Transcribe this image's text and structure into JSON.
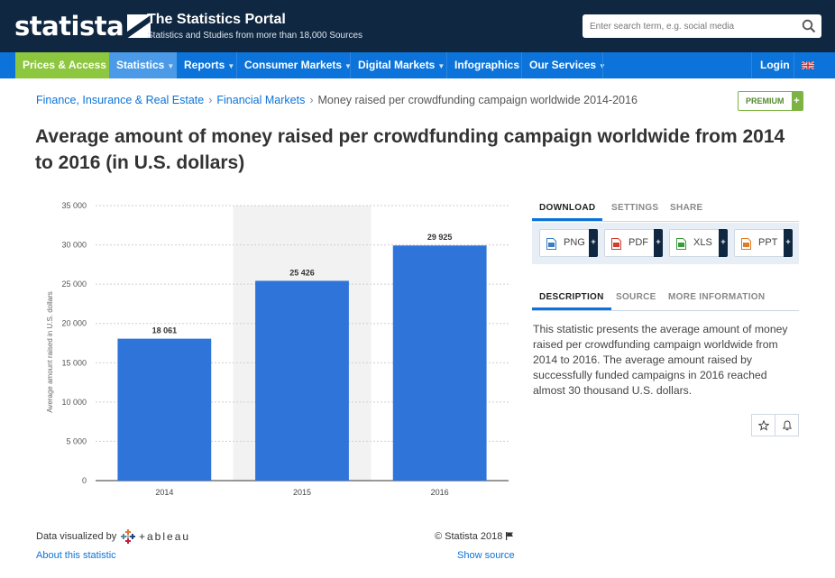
{
  "header": {
    "logo_text": "statista",
    "portal_title": "The Statistics Portal",
    "portal_subtitle": "Statistics and Studies from more than 18,000 Sources",
    "search_placeholder": "Enter search term, e.g. social media",
    "search_icon": "search-icon"
  },
  "nav": {
    "items": [
      {
        "label": "Prices & Access",
        "dropdown": true
      },
      {
        "label": "Statistics",
        "dropdown": true
      },
      {
        "label": "Reports",
        "dropdown": true
      },
      {
        "label": "Consumer Markets",
        "dropdown": true
      },
      {
        "label": "Digital Markets",
        "dropdown": true
      },
      {
        "label": "Infographics",
        "dropdown": false
      },
      {
        "label": "Our Services",
        "dropdown": true
      }
    ],
    "login": "Login",
    "flag_icon": "uk-flag-icon",
    "colors": {
      "bar": "#0b73d9",
      "prices_access": "#8dc63f",
      "statistics_active": "#4a9ae8"
    }
  },
  "breadcrumb": {
    "items": [
      "Finance, Insurance & Real Estate",
      "Financial Markets"
    ],
    "current": "Money raised per crowdfunding campaign worldwide 2014-2016",
    "separator": "›"
  },
  "premium": {
    "label": "PREMIUM",
    "plus": "+"
  },
  "page_title": "Average amount of money raised per crowdfunding campaign worldwide from 2014 to 2016 (in U.S. dollars)",
  "chart_data": {
    "type": "bar",
    "categories": [
      "2014",
      "2015",
      "2016"
    ],
    "values": [
      18061,
      25426,
      29925
    ],
    "value_labels": [
      "18 061",
      "25 426",
      "29 925"
    ],
    "title": "",
    "xlabel": "",
    "ylabel": "Average amount raised in U.S. dollars",
    "ylim": [
      0,
      35000
    ],
    "yticks": [
      0,
      5000,
      10000,
      15000,
      20000,
      25000,
      30000,
      35000
    ],
    "ytick_labels": [
      "0",
      "5 000",
      "10 000",
      "15 000",
      "20 000",
      "25 000",
      "30 000",
      "35 000"
    ],
    "grid": true,
    "bar_color": "#2f74d9",
    "highlight_category": "2015"
  },
  "chart_footer": {
    "data_visualized_by": "Data visualized by",
    "tableau_text": "+ableau",
    "about_link": "About this statistic",
    "copyright": "© Statista 2018",
    "flag_icon": "report-flag-icon",
    "show_source": "Show source"
  },
  "download_tabs": [
    "DOWNLOAD",
    "SETTINGS",
    "SHARE"
  ],
  "download_buttons": [
    {
      "label": "PNG",
      "icon": "png-file-icon",
      "color": "#3b7dc4"
    },
    {
      "label": "PDF",
      "icon": "pdf-file-icon",
      "color": "#d23b2e"
    },
    {
      "label": "XLS",
      "icon": "xls-file-icon",
      "color": "#3a9b3a"
    },
    {
      "label": "PPT",
      "icon": "ppt-file-icon",
      "color": "#e07b24"
    }
  ],
  "info_tabs": [
    "DESCRIPTION",
    "SOURCE",
    "MORE INFORMATION"
  ],
  "description": "This statistic presents the average amount of money raised per crowdfunding campaign worldwide from 2014 to 2016. The average amount raised by successfully funded campaigns in 2016 reached almost 30 thousand U.S. dollars.",
  "action_icons": [
    "star-icon",
    "bell-icon"
  ]
}
